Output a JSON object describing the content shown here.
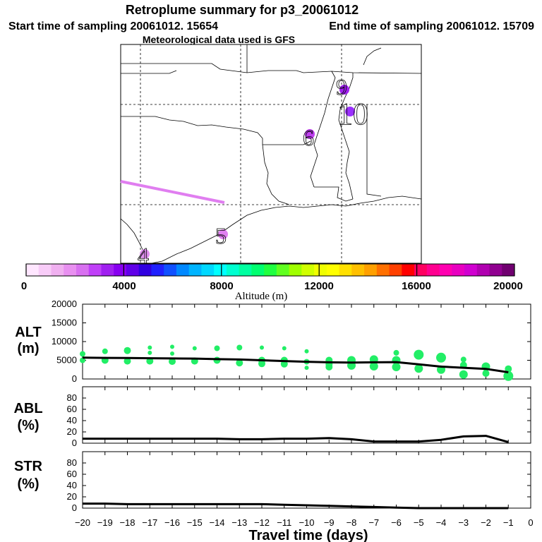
{
  "title": "Retroplume summary for p3_20061012",
  "start_text": "Start time of sampling 20061012. 15654",
  "end_text": "End time of sampling 20061012. 15709",
  "met_text": "Meteorological data used is GFS",
  "map": {
    "labels": [
      {
        "text": "9",
        "color": "#a020f0"
      },
      {
        "text": "10",
        "color": "#9b30ff"
      },
      {
        "text": "6",
        "color": "#c040f0"
      },
      {
        "text": "5",
        "color": "#e080f0"
      },
      {
        "text": "4",
        "color": "#e090f0"
      }
    ],
    "track_color": "#e07ef0"
  },
  "colorbar": {
    "label": "Altitude (m)",
    "ticks": [
      "0",
      "4000",
      "8000",
      "12000",
      "16000",
      "20000"
    ],
    "colors": [
      "#ffe6ff",
      "#f8ccf8",
      "#f0b0f0",
      "#e890f0",
      "#d870f0",
      "#c040f8",
      "#a020f0",
      "#8800f0",
      "#6000e8",
      "#3000e0",
      "#2020ff",
      "#1050ff",
      "#0088ff",
      "#00b4ff",
      "#00d8ff",
      "#00ffff",
      "#00ffd0",
      "#00ffa0",
      "#00ff70",
      "#20ff40",
      "#60ff20",
      "#a0ff00",
      "#d0ff00",
      "#f0ff00",
      "#ffff00",
      "#ffe000",
      "#ffc000",
      "#ffa000",
      "#ff7000",
      "#ff4000",
      "#ff0000",
      "#ff0060",
      "#ff0090",
      "#ff00b0",
      "#e800c0",
      "#d000d0",
      "#b000b0",
      "#900090",
      "#700070"
    ]
  },
  "chart_data": [
    {
      "type": "line",
      "panel": "ALT",
      "ylabel": "ALT",
      "yunit": "(m)",
      "ylim": [
        0,
        20000
      ],
      "yticks": [
        "0",
        "5000",
        "10000",
        "15000",
        "20000"
      ],
      "x": [
        -20,
        -19,
        -18,
        -17,
        -16,
        -15,
        -14,
        -13,
        -12,
        -11,
        -10,
        -9,
        -8,
        -7,
        -6,
        -5,
        -4,
        -3,
        -2,
        -1
      ],
      "median": [
        5700,
        5650,
        5600,
        5550,
        5500,
        5450,
        5300,
        5200,
        5000,
        4800,
        4600,
        4450,
        4400,
        4450,
        4500,
        3900,
        3300,
        3000,
        2700,
        1800
      ],
      "marker_color": "#22ee66",
      "points": [
        {
          "x": -20,
          "y": 6700,
          "r": 4
        },
        {
          "x": -20,
          "y": 5000,
          "r": 4
        },
        {
          "x": -19,
          "y": 7400,
          "r": 4
        },
        {
          "x": -19,
          "y": 5000,
          "r": 5
        },
        {
          "x": -18,
          "y": 7600,
          "r": 5
        },
        {
          "x": -18,
          "y": 4800,
          "r": 5
        },
        {
          "x": -17,
          "y": 8400,
          "r": 3
        },
        {
          "x": -17,
          "y": 7000,
          "r": 3
        },
        {
          "x": -17,
          "y": 4800,
          "r": 5
        },
        {
          "x": -16,
          "y": 8600,
          "r": 3
        },
        {
          "x": -16,
          "y": 6800,
          "r": 3
        },
        {
          "x": -16,
          "y": 4700,
          "r": 5
        },
        {
          "x": -15,
          "y": 8200,
          "r": 3
        },
        {
          "x": -15,
          "y": 4800,
          "r": 5
        },
        {
          "x": -14,
          "y": 8200,
          "r": 4
        },
        {
          "x": -14,
          "y": 5000,
          "r": 5
        },
        {
          "x": -13,
          "y": 8400,
          "r": 4
        },
        {
          "x": -13,
          "y": 4300,
          "r": 5
        },
        {
          "x": -12,
          "y": 8400,
          "r": 3
        },
        {
          "x": -12,
          "y": 5000,
          "r": 5
        },
        {
          "x": -12,
          "y": 4100,
          "r": 5
        },
        {
          "x": -11,
          "y": 8200,
          "r": 3
        },
        {
          "x": -11,
          "y": 5000,
          "r": 5
        },
        {
          "x": -11,
          "y": 4000,
          "r": 5
        },
        {
          "x": -10,
          "y": 7400,
          "r": 3
        },
        {
          "x": -10,
          "y": 4600,
          "r": 4
        },
        {
          "x": -10,
          "y": 3000,
          "r": 3
        },
        {
          "x": -9,
          "y": 5000,
          "r": 5
        },
        {
          "x": -9,
          "y": 3900,
          "r": 5
        },
        {
          "x": -9,
          "y": 3200,
          "r": 5
        },
        {
          "x": -8,
          "y": 5000,
          "r": 6
        },
        {
          "x": -8,
          "y": 3600,
          "r": 6
        },
        {
          "x": -7,
          "y": 5200,
          "r": 6
        },
        {
          "x": -7,
          "y": 3400,
          "r": 6
        },
        {
          "x": -6,
          "y": 7000,
          "r": 4
        },
        {
          "x": -6,
          "y": 5000,
          "r": 6
        },
        {
          "x": -6,
          "y": 3200,
          "r": 6
        },
        {
          "x": -5,
          "y": 6500,
          "r": 7
        },
        {
          "x": -5,
          "y": 2800,
          "r": 6
        },
        {
          "x": -4,
          "y": 5700,
          "r": 7
        },
        {
          "x": -4,
          "y": 2500,
          "r": 6
        },
        {
          "x": -3,
          "y": 5200,
          "r": 4
        },
        {
          "x": -3,
          "y": 3700,
          "r": 5
        },
        {
          "x": -3,
          "y": 1200,
          "r": 6
        },
        {
          "x": -2,
          "y": 3300,
          "r": 6
        },
        {
          "x": -2,
          "y": 1500,
          "r": 5
        },
        {
          "x": -1,
          "y": 2700,
          "r": 5
        },
        {
          "x": -1,
          "y": 800,
          "r": 7
        }
      ]
    },
    {
      "type": "line",
      "panel": "ABL",
      "ylabel": "ABL",
      "yunit": "(%)",
      "ylim": [
        0,
        100
      ],
      "yticks": [
        "0",
        "20",
        "40",
        "60",
        "80"
      ],
      "x": [
        -20,
        -19,
        -18,
        -17,
        -16,
        -15,
        -14,
        -13,
        -12,
        -11,
        -10,
        -9,
        -8,
        -7,
        -6,
        -5,
        -4,
        -3,
        -2,
        -1
      ],
      "values": [
        8,
        8,
        8,
        8,
        8,
        8,
        8,
        7,
        7,
        8,
        8,
        9,
        7,
        3,
        3,
        3,
        6,
        12,
        13,
        2
      ]
    },
    {
      "type": "line",
      "panel": "STR",
      "ylabel": "STR",
      "yunit": "(%)",
      "ylim": [
        0,
        100
      ],
      "yticks": [
        "0",
        "20",
        "40",
        "60",
        "80"
      ],
      "x": [
        -20,
        -19,
        -18,
        -17,
        -16,
        -15,
        -14,
        -13,
        -12,
        -11,
        -10,
        -9,
        -8,
        -7,
        -6,
        -5,
        -4,
        -3,
        -2,
        -1
      ],
      "values": [
        8,
        8,
        7,
        7,
        7,
        7,
        7,
        7,
        7,
        6,
        5,
        4,
        3,
        2,
        1,
        0,
        0,
        0,
        0,
        0
      ],
      "xlabel": "Travel time (days)",
      "xlim": [
        -20,
        0
      ],
      "xticklabels": [
        "−20",
        "−19",
        "−18",
        "−17",
        "−16",
        "−15",
        "−14",
        "−13",
        "−12",
        "−11",
        "−10",
        "−9",
        "−8",
        "−7",
        "−6",
        "−5",
        "−4",
        "−3",
        "−2",
        "−1",
        "0"
      ]
    }
  ]
}
